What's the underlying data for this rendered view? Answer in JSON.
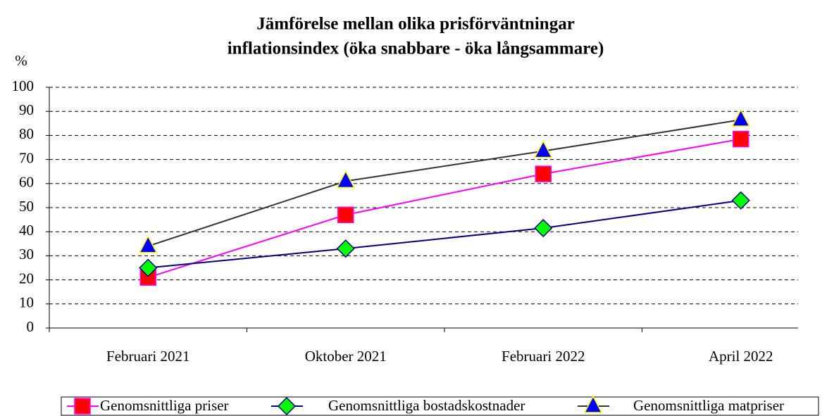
{
  "chart_data": {
    "type": "line",
    "title": [
      "Jämförelse mellan olika prisförväntningar",
      "inflationsindex (öka snabbare - öka långsammare)"
    ],
    "ylabel": "%",
    "categories": [
      "Februari 2021",
      "Oktober 2021",
      "Februari 2022",
      "April 2022"
    ],
    "series": [
      {
        "name": "Genomsnittliga priser",
        "color": "#ff00ff",
        "marker": "square",
        "marker_color": "#ff0000",
        "values": [
          21,
          47,
          64,
          78.5
        ]
      },
      {
        "name": "Genomsnittliga bostadskostnader",
        "color": "#000080",
        "marker": "diamond",
        "marker_color": "#00ff00",
        "values": [
          25,
          33,
          41.5,
          53
        ]
      },
      {
        "name": "Genomsnittliga matpriser",
        "color": "#333333",
        "marker": "triangle",
        "marker_color": "#0000ff",
        "values": [
          34,
          61,
          73.5,
          86.5
        ]
      }
    ],
    "ylim": [
      0,
      100
    ],
    "yticks": [
      0,
      10,
      20,
      30,
      40,
      50,
      60,
      70,
      80,
      90,
      100
    ],
    "grid": true,
    "legend": "bottom"
  }
}
